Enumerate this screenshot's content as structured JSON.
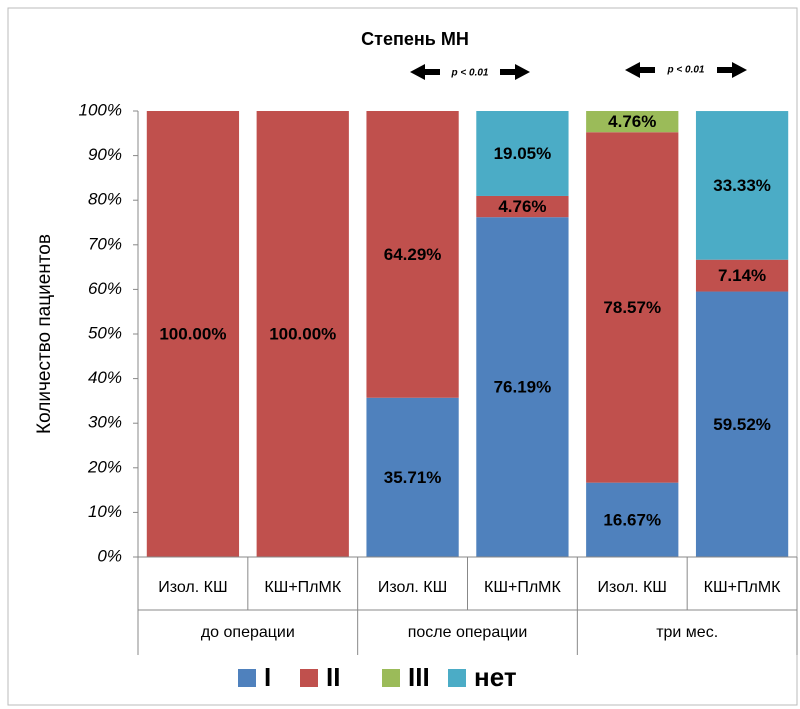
{
  "chart_data": {
    "type": "stacked_bar",
    "title": "Степень МН",
    "ylabel": "Количество пациентов",
    "annotations": [
      "p < 0.01",
      "p < 0.01"
    ],
    "categories": [
      "Изол. КШ",
      "КШ+ПлМК",
      "Изол. КШ",
      "КШ+ПлМК",
      "Изол. КШ",
      "КШ+ПлМК"
    ],
    "groups": [
      "до операции",
      "после операции",
      "три мес."
    ],
    "series": [
      {
        "name": "I",
        "color": "#4f81bd",
        "values": [
          0,
          0,
          35.71,
          76.19,
          16.67,
          59.52
        ],
        "value_labels": [
          null,
          null,
          "35.71%",
          "76.19%",
          "16.67%",
          "59.52%"
        ]
      },
      {
        "name": "II",
        "color": "#c0504d",
        "values": [
          100,
          100,
          64.29,
          4.76,
          78.57,
          7.14
        ],
        "value_labels": [
          "100.00%",
          "100.00%",
          "64.29%",
          "4.76%",
          "78.57%",
          "7.14%"
        ]
      },
      {
        "name": "III",
        "color": "#9bbb59",
        "values": [
          0,
          0,
          0,
          0,
          4.76,
          0
        ],
        "value_labels": [
          null,
          null,
          null,
          null,
          "4.76%",
          null
        ]
      },
      {
        "name": "нет",
        "color": "#4bacc6",
        "values": [
          0,
          0,
          0,
          19.05,
          0,
          33.33
        ],
        "value_labels": [
          null,
          null,
          null,
          "19.05%",
          null,
          "33.33%"
        ]
      }
    ],
    "ylim": [
      0,
      100
    ],
    "yticks": [
      {
        "value": 0,
        "label": "0%"
      },
      {
        "value": 10,
        "label": "10%"
      },
      {
        "value": 20,
        "label": "20%"
      },
      {
        "value": 30,
        "label": "30%"
      },
      {
        "value": 40,
        "label": "40%"
      },
      {
        "value": 50,
        "label": "50%"
      },
      {
        "value": 60,
        "label": "60%"
      },
      {
        "value": 70,
        "label": "70%"
      },
      {
        "value": 80,
        "label": "80%"
      },
      {
        "value": 90,
        "label": "90%"
      },
      {
        "value": 100,
        "label": "100%"
      }
    ],
    "grid": false,
    "legend": "bottom"
  }
}
